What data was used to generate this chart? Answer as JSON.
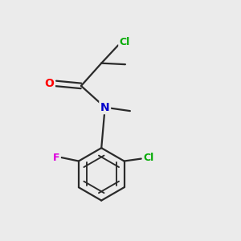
{
  "background_color": "#ebebeb",
  "atom_colors": {
    "C": "#1a1a1a",
    "N": "#0000cc",
    "O": "#ff0000",
    "Cl": "#00aa00",
    "F": "#dd00dd"
  },
  "bond_color": "#2a2a2a",
  "figsize": [
    3.0,
    3.0
  ],
  "dpi": 100,
  "xlim": [
    0,
    10
  ],
  "ylim": [
    0,
    10
  ]
}
